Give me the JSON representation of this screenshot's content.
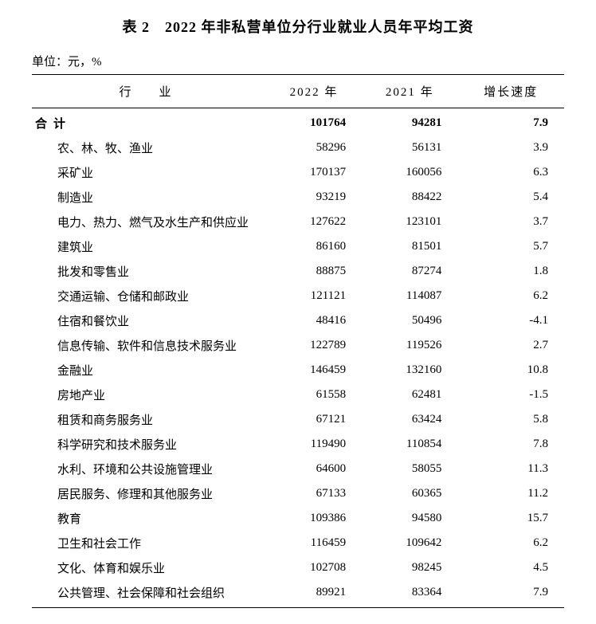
{
  "title": "表 2　2022 年非私营单位分行业就业人员年平均工资",
  "unit": "单位：元，%",
  "headers": {
    "industry": "行　业",
    "year2022": "2022 年",
    "year2021": "2021 年",
    "growth": "增长速度"
  },
  "total": {
    "label": "合计",
    "y2022": "101764",
    "y2021": "94281",
    "growth": "7.9"
  },
  "rows": [
    {
      "label": "农、林、牧、渔业",
      "y2022": "58296",
      "y2021": "56131",
      "growth": "3.9"
    },
    {
      "label": "采矿业",
      "y2022": "170137",
      "y2021": "160056",
      "growth": "6.3"
    },
    {
      "label": "制造业",
      "y2022": "93219",
      "y2021": "88422",
      "growth": "5.4"
    },
    {
      "label": "电力、热力、燃气及水生产和供应业",
      "y2022": "127622",
      "y2021": "123101",
      "growth": "3.7"
    },
    {
      "label": "建筑业",
      "y2022": "86160",
      "y2021": "81501",
      "growth": "5.7"
    },
    {
      "label": "批发和零售业",
      "y2022": "88875",
      "y2021": "87274",
      "growth": "1.8"
    },
    {
      "label": "交通运输、仓储和邮政业",
      "y2022": "121121",
      "y2021": "114087",
      "growth": "6.2"
    },
    {
      "label": "住宿和餐饮业",
      "y2022": "48416",
      "y2021": "50496",
      "growth": "-4.1"
    },
    {
      "label": "信息传输、软件和信息技术服务业",
      "y2022": "122789",
      "y2021": "119526",
      "growth": "2.7"
    },
    {
      "label": "金融业",
      "y2022": "146459",
      "y2021": "132160",
      "growth": "10.8"
    },
    {
      "label": "房地产业",
      "y2022": "61558",
      "y2021": "62481",
      "growth": "-1.5"
    },
    {
      "label": "租赁和商务服务业",
      "y2022": "67121",
      "y2021": "63424",
      "growth": "5.8"
    },
    {
      "label": "科学研究和技术服务业",
      "y2022": "119490",
      "y2021": "110854",
      "growth": "7.8"
    },
    {
      "label": "水利、环境和公共设施管理业",
      "y2022": "64600",
      "y2021": "58055",
      "growth": "11.3"
    },
    {
      "label": "居民服务、修理和其他服务业",
      "y2022": "67133",
      "y2021": "60365",
      "growth": "11.2"
    },
    {
      "label": "教育",
      "y2022": "109386",
      "y2021": "94580",
      "growth": "15.7"
    },
    {
      "label": "卫生和社会工作",
      "y2022": "116459",
      "y2021": "109642",
      "growth": "6.2"
    },
    {
      "label": "文化、体育和娱乐业",
      "y2022": "102708",
      "y2021": "98245",
      "growth": "4.5"
    },
    {
      "label": "公共管理、社会保障和社会组织",
      "y2022": "89921",
      "y2021": "83364",
      "growth": "7.9"
    }
  ],
  "style": {
    "font_family": "SimSun",
    "title_fontsize": 18,
    "body_fontsize": 15,
    "text_color": "#000000",
    "background_color": "#ffffff",
    "border_color": "#000000",
    "col_widths_pct": [
      44,
      18,
      18,
      20
    ]
  }
}
